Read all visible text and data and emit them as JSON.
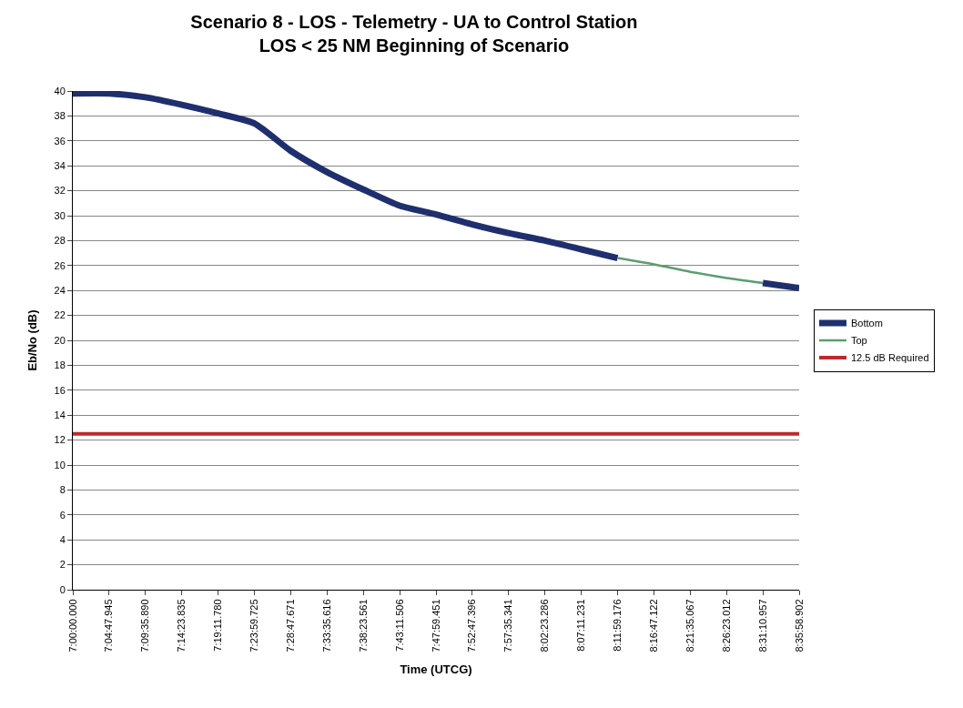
{
  "chart_data": {
    "type": "line",
    "title": "Scenario 8 - LOS - Telemetry - UA to Control Station\nLOS < 25 NM Beginning of Scenario",
    "xlabel": "Time (UTCG)",
    "ylabel": "Eb/No (dB)",
    "categories": [
      "7:00:00.000",
      "7:04:47.945",
      "7:09:35.890",
      "7:14:23.835",
      "7:19:11.780",
      "7:23:59.725",
      "7:28:47.671",
      "7:33:35.616",
      "7:38:23.561",
      "7:43:11.506",
      "7:47:59.451",
      "7:52:47.396",
      "7:57:35.341",
      "8:02:23.286",
      "8:07:11.231",
      "8:11:59.176",
      "8:16:47.122",
      "8:21:35.067",
      "8:26:23.012",
      "8:31:10.957",
      "8:35:58.902"
    ],
    "series": [
      {
        "name": "Bottom",
        "color": "#1f2f6e",
        "values": [
          39.8,
          39.8,
          39.5,
          38.9,
          38.2,
          37.4,
          35.2,
          33.5,
          32.1,
          30.8,
          30.1,
          29.3,
          28.6,
          28.0,
          27.3,
          26.6,
          null,
          null,
          null,
          24.6,
          24.2
        ]
      },
      {
        "name": "Top",
        "color": "#5a9e6f",
        "values": [
          null,
          null,
          null,
          null,
          null,
          null,
          null,
          null,
          null,
          null,
          null,
          null,
          null,
          null,
          null,
          26.6,
          26.1,
          25.5,
          25.0,
          24.6,
          null
        ]
      }
    ],
    "ref_lines": [
      {
        "axis": "y",
        "value": 12.5,
        "label": "12.5 dB Required",
        "color": "#c0282d"
      }
    ],
    "ylim": [
      0,
      40
    ],
    "yticks": [
      0,
      2,
      4,
      6,
      8,
      10,
      12,
      14,
      16,
      18,
      20,
      22,
      24,
      26,
      28,
      30,
      32,
      34,
      36,
      38,
      40
    ],
    "grid": "y",
    "legend": "right",
    "marker": "none",
    "line_style": "solid"
  }
}
